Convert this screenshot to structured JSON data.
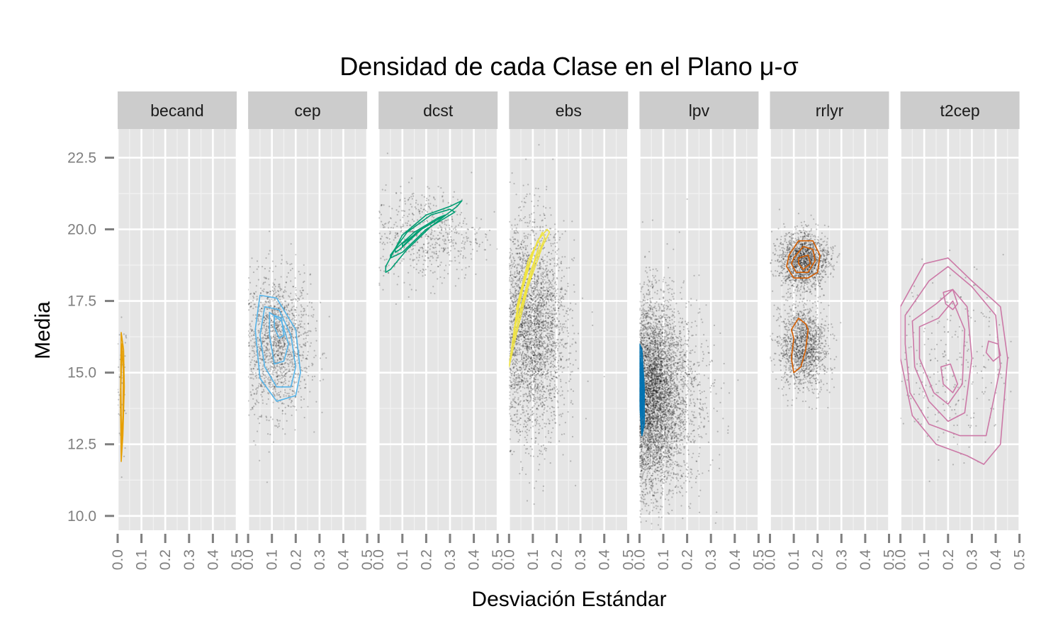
{
  "chart_data": {
    "type": "scatter",
    "title": "Densidad de cada Clase en el Plano μ-σ",
    "xlabel": "Desviación Estándar",
    "ylabel": "Media",
    "xlim": [
      0,
      0.5
    ],
    "ylim": [
      9.5,
      23.5
    ],
    "x_ticks": [
      "0.0",
      "0.1",
      "0.2",
      "0.3",
      "0.4",
      "0.5"
    ],
    "y_ticks": [
      "10.0",
      "12.5",
      "15.0",
      "17.5",
      "20.0",
      "22.5"
    ],
    "grid": true,
    "facets": [
      {
        "name": "becand",
        "color": "#E69F00",
        "scatter": {
          "x_center": 0.02,
          "x_spread": 0.01,
          "y_center": 14.5,
          "y_spread": 1.2,
          "count": 60
        },
        "contours": [
          {
            "x": [
              0.015,
              0.025,
              0.028,
              0.022,
              0.015,
              0.012
            ],
            "y": [
              16.4,
              15.8,
              14.5,
              12.8,
              11.9,
              14.0
            ]
          },
          {
            "x": [
              0.018,
              0.024,
              0.022,
              0.016,
              0.014
            ],
            "y": [
              16.0,
              15.0,
              13.5,
              12.5,
              14.5
            ]
          }
        ]
      },
      {
        "name": "cep",
        "color": "#56B4E9",
        "scatter": {
          "x_center": 0.12,
          "x_spread": 0.07,
          "y_center": 16.0,
          "y_spread": 1.2,
          "count": 1500
        },
        "contours": [
          {
            "x": [
              0.05,
              0.12,
              0.2,
              0.22,
              0.2,
              0.12,
              0.05,
              0.03
            ],
            "y": [
              17.7,
              17.6,
              16.5,
              15.0,
              14.2,
              14.0,
              14.8,
              16.5
            ]
          },
          {
            "x": [
              0.07,
              0.13,
              0.18,
              0.2,
              0.18,
              0.12,
              0.07,
              0.05
            ],
            "y": [
              17.3,
              17.2,
              16.3,
              15.2,
              14.5,
              14.5,
              15.2,
              16.3
            ]
          },
          {
            "x": [
              0.09,
              0.14,
              0.17,
              0.15,
              0.11,
              0.09
            ],
            "y": [
              17.1,
              16.8,
              16.0,
              15.4,
              15.3,
              16.3
            ]
          },
          {
            "x": [
              0.11,
              0.14,
              0.15,
              0.13,
              0.11
            ],
            "y": [
              17.0,
              16.9,
              16.3,
              16.2,
              16.6
            ]
          }
        ]
      },
      {
        "name": "dcst",
        "color": "#009E73",
        "scatter": {
          "x_center": 0.2,
          "x_spread": 0.12,
          "y_center": 19.8,
          "y_spread": 0.8,
          "count": 600
        },
        "contours": [
          {
            "x": [
              0.03,
              0.1,
              0.2,
              0.3,
              0.35,
              0.33,
              0.22,
              0.12,
              0.05,
              0.03
            ],
            "y": [
              18.7,
              19.8,
              20.5,
              20.8,
              21.0,
              20.8,
              20.1,
              19.3,
              18.6,
              18.5
            ]
          },
          {
            "x": [
              0.05,
              0.12,
              0.22,
              0.3,
              0.32,
              0.2,
              0.1,
              0.05
            ],
            "y": [
              19.1,
              19.9,
              20.5,
              20.7,
              20.6,
              20.0,
              19.2,
              19.0
            ]
          },
          {
            "x": [
              0.07,
              0.15,
              0.25,
              0.28,
              0.18,
              0.09,
              0.07
            ],
            "y": [
              19.3,
              19.9,
              20.4,
              20.5,
              20.0,
              19.3,
              19.2
            ]
          },
          {
            "x": [
              0.1,
              0.18,
              0.24,
              0.16,
              0.1
            ],
            "y": [
              19.5,
              20.0,
              20.3,
              19.9,
              19.4
            ]
          }
        ]
      },
      {
        "name": "ebs",
        "color": "#F0E442",
        "scatter": {
          "x_center": 0.1,
          "x_spread": 0.07,
          "y_center": 16.5,
          "y_spread": 1.8,
          "count": 3000
        },
        "contours": [
          {
            "x": [
              0.0,
              0.03,
              0.07,
              0.12,
              0.16,
              0.17,
              0.14,
              0.08,
              0.03,
              0.0
            ],
            "y": [
              15.2,
              17.0,
              18.5,
              19.6,
              20.0,
              19.9,
              19.4,
              18.0,
              16.3,
              15.2
            ]
          },
          {
            "x": [
              0.01,
              0.05,
              0.1,
              0.14,
              0.15,
              0.11,
              0.05,
              0.01
            ],
            "y": [
              15.8,
              17.8,
              19.2,
              19.9,
              19.7,
              18.9,
              17.2,
              15.8
            ]
          },
          {
            "x": [
              0.02,
              0.07,
              0.12,
              0.13,
              0.09,
              0.04,
              0.02
            ],
            "y": [
              16.5,
              18.4,
              19.6,
              19.5,
              18.5,
              17.0,
              16.5
            ]
          },
          {
            "x": [
              0.03,
              0.08,
              0.11,
              0.07,
              0.03
            ],
            "y": [
              17.2,
              18.9,
              19.4,
              18.3,
              17.2
            ]
          }
        ]
      },
      {
        "name": "lpv",
        "color": "#0072B2",
        "scatter": {
          "x_center": 0.06,
          "x_spread": 0.08,
          "y_center": 14.2,
          "y_spread": 1.6,
          "count": 5000
        },
        "contours": [
          {
            "x": [
              0.0,
              0.01,
              0.02,
              0.02,
              0.01,
              0.0
            ],
            "y": [
              16.0,
              15.8,
              14.5,
              13.2,
              12.8,
              14.0
            ]
          },
          {
            "x": [
              0.003,
              0.012,
              0.016,
              0.012,
              0.003
            ],
            "y": [
              15.5,
              15.2,
              14.3,
              13.4,
              14.0
            ]
          }
        ]
      },
      {
        "name": "rrlyr",
        "color": "#D55E00",
        "scatter": {
          "x_center": 0.14,
          "x_spread": 0.05,
          "y_center": 17.5,
          "y_spread": 1.6,
          "count": 3000
        },
        "contours": [
          {
            "x": [
              0.08,
              0.12,
              0.18,
              0.21,
              0.2,
              0.16,
              0.1,
              0.07
            ],
            "y": [
              19.1,
              19.6,
              19.6,
              19.1,
              18.5,
              18.3,
              18.3,
              18.7
            ]
          },
          {
            "x": [
              0.1,
              0.14,
              0.18,
              0.19,
              0.16,
              0.11,
              0.09
            ],
            "y": [
              19.0,
              19.4,
              19.3,
              18.9,
              18.5,
              18.5,
              18.8
            ]
          },
          {
            "x": [
              0.12,
              0.16,
              0.17,
              0.14,
              0.12
            ],
            "y": [
              19.0,
              19.1,
              18.8,
              18.6,
              18.8
            ]
          },
          {
            "x": [
              0.09,
              0.12,
              0.15,
              0.16,
              0.15,
              0.13,
              0.1,
              0.09,
              0.1
            ],
            "y": [
              16.5,
              16.9,
              16.7,
              16.5,
              15.8,
              15.2,
              15.0,
              15.5,
              16.2
            ]
          }
        ]
      },
      {
        "name": "t2cep",
        "color": "#CC79A7",
        "scatter": {
          "x_center": 0.22,
          "x_spread": 0.11,
          "y_center": 15.3,
          "y_spread": 1.6,
          "count": 250
        },
        "contours": [
          {
            "x": [
              0.0,
              0.1,
              0.2,
              0.3,
              0.42,
              0.45,
              0.42,
              0.35,
              0.28,
              0.15,
              0.05,
              0.0
            ],
            "y": [
              17.3,
              18.8,
              19.0,
              18.2,
              17.3,
              15.5,
              12.5,
              11.8,
              12.1,
              12.5,
              13.5,
              15.5
            ]
          },
          {
            "x": [
              0.02,
              0.12,
              0.2,
              0.3,
              0.4,
              0.42,
              0.36,
              0.25,
              0.12,
              0.04,
              0.02
            ],
            "y": [
              17.0,
              18.2,
              18.7,
              18.0,
              17.0,
              15.2,
              12.8,
              12.8,
              13.2,
              14.3,
              16.0
            ]
          },
          {
            "x": [
              0.05,
              0.15,
              0.22,
              0.28,
              0.3,
              0.27,
              0.2,
              0.12,
              0.06
            ],
            "y": [
              16.8,
              17.4,
              17.9,
              17.3,
              15.5,
              13.6,
              13.3,
              14.0,
              15.2
            ]
          },
          {
            "x": [
              0.08,
              0.16,
              0.22,
              0.27,
              0.26,
              0.2,
              0.14,
              0.08
            ],
            "y": [
              16.6,
              16.9,
              17.5,
              16.5,
              14.6,
              13.9,
              14.3,
              15.5
            ]
          },
          {
            "x": [
              0.18,
              0.22,
              0.24,
              0.22,
              0.19
            ],
            "y": [
              17.8,
              17.9,
              17.4,
              17.2,
              17.4
            ]
          },
          {
            "x": [
              0.17,
              0.21,
              0.24,
              0.22,
              0.18
            ],
            "y": [
              15.2,
              15.3,
              14.6,
              14.3,
              14.6
            ]
          },
          {
            "x": [
              0.37,
              0.41,
              0.42,
              0.39,
              0.36
            ],
            "y": [
              16.1,
              16.0,
              15.6,
              15.4,
              15.7
            ]
          }
        ]
      }
    ]
  }
}
